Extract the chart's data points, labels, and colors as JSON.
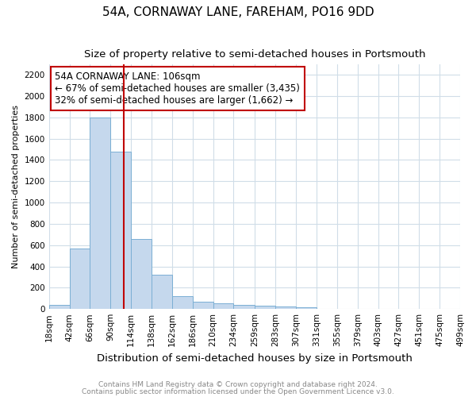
{
  "title": "54A, CORNAWAY LANE, FAREHAM, PO16 9DD",
  "subtitle": "Size of property relative to semi-detached houses in Portsmouth",
  "xlabel": "Distribution of semi-detached houses by size in Portsmouth",
  "ylabel": "Number of semi-detached properties",
  "footnote1": "Contains HM Land Registry data © Crown copyright and database right 2024.",
  "footnote2": "Contains public sector information licensed under the Open Government Licence v3.0.",
  "annotation_title": "54A CORNAWAY LANE: 106sqm",
  "annotation_line1": "← 67% of semi-detached houses are smaller (3,435)",
  "annotation_line2": "32% of semi-detached houses are larger (1,662) →",
  "property_size": 106,
  "bin_edges": [
    18,
    42,
    66,
    90,
    114,
    138,
    162,
    186,
    210,
    234,
    259,
    283,
    307,
    331,
    355,
    379,
    403,
    427,
    451,
    475,
    499
  ],
  "bar_values": [
    35,
    570,
    1800,
    1480,
    660,
    325,
    120,
    65,
    55,
    40,
    30,
    20,
    18,
    0,
    0,
    0,
    0,
    0,
    0,
    0
  ],
  "bar_color": "#c5d8ed",
  "bar_edgecolor": "#7bafd4",
  "vline_color": "#c00000",
  "annotation_box_color": "#ffffff",
  "annotation_box_edgecolor": "#c00000",
  "ylim": [
    0,
    2300
  ],
  "yticks": [
    0,
    200,
    400,
    600,
    800,
    1000,
    1200,
    1400,
    1600,
    1800,
    2000,
    2200
  ],
  "grid_color": "#d0dde8",
  "background_color": "#ffffff",
  "title_fontsize": 11,
  "subtitle_fontsize": 9.5,
  "xlabel_fontsize": 9.5,
  "ylabel_fontsize": 8,
  "tick_fontsize": 7.5,
  "annotation_fontsize": 8.5,
  "footnote_fontsize": 6.5,
  "footnote_color": "#888888"
}
